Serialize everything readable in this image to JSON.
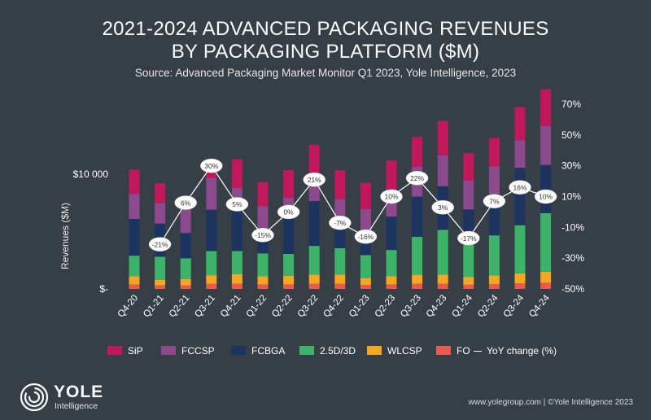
{
  "header": {
    "title_line1": "2021-2024 ADVANCED PACKAGING REVENUES",
    "title_line2": "BY PACKAGING PLATFORM ($M)",
    "subtitle": "Source: Advanced Packaging Market Monitor Q1 2023, Yole Intelligence, 2023"
  },
  "legend": {
    "sip": "SiP",
    "fccsp": "FCCSP",
    "fcbga": "FCBGA",
    "d25": "2.5D/3D",
    "wlcsp": "WLCSP",
    "fo": "FO",
    "yoy": "YoY change (%)"
  },
  "colors": {
    "sip": "#c0185a",
    "fccsp": "#8b4a8c",
    "fcbga": "#1d3461",
    "d25": "#3db36a",
    "wlcsp": "#f5a623",
    "fo": "#e85a4f"
  },
  "logo": {
    "name": "YOLE",
    "sub": "Intelligence"
  },
  "footer": "www.yolegroup.com | ©Yole Intelligence 2023",
  "chart_data": {
    "type": "bar",
    "stacked": true,
    "title": "2021-2024 ADVANCED PACKAGING REVENUES BY PACKAGING PLATFORM ($M)",
    "ylabel": "Revenues ($M)",
    "y_ticks": [
      "$-",
      "$10 000"
    ],
    "ylim": [
      0,
      18000
    ],
    "y2_ticks": [
      "70%",
      "50%",
      "30%",
      "10%",
      "-10%",
      "-30%",
      "-50%"
    ],
    "y2lim": [
      -50,
      70
    ],
    "categories": [
      "Q4-20",
      "Q1-21",
      "Q2-21",
      "Q3-21",
      "Q4-21",
      "Q1-22",
      "Q2-22",
      "Q3-22",
      "Q4-22",
      "Q1-23",
      "Q2-23",
      "Q3-23",
      "Q4-23",
      "Q1-24",
      "Q2-24",
      "Q3-24",
      "Q4-24"
    ],
    "series": [
      {
        "name": "FO",
        "key": "fo",
        "values": [
          400,
          300,
          320,
          450,
          450,
          400,
          400,
          450,
          450,
          350,
          400,
          450,
          450,
          380,
          420,
          500,
          550
        ]
      },
      {
        "name": "WLCSP",
        "key": "wlcsp",
        "values": [
          700,
          500,
          550,
          750,
          850,
          700,
          750,
          800,
          800,
          600,
          700,
          800,
          800,
          650,
          750,
          850,
          950
        ]
      },
      {
        "name": "2.5D/3D",
        "key": "d25",
        "values": [
          1800,
          2000,
          1800,
          2100,
          2000,
          2000,
          1900,
          2500,
          2300,
          2000,
          2300,
          3300,
          3900,
          3100,
          3500,
          4200,
          5100
        ]
      },
      {
        "name": "FCBGA",
        "key": "fcbga",
        "values": [
          3200,
          2900,
          2200,
          3600,
          3600,
          1800,
          3400,
          3900,
          1900,
          1600,
          2900,
          3500,
          3800,
          2800,
          3600,
          5000,
          4200
        ]
      },
      {
        "name": "FCCSP",
        "key": "fccsp",
        "values": [
          2200,
          1800,
          2300,
          2800,
          1900,
          2300,
          1500,
          2300,
          2400,
          2400,
          2400,
          2600,
          2700,
          2500,
          2400,
          2400,
          3400
        ]
      },
      {
        "name": "SiP",
        "key": "sip",
        "values": [
          2100,
          1700,
          700,
          700,
          2500,
          2100,
          2400,
          2600,
          2500,
          2300,
          2500,
          2600,
          3000,
          2400,
          2500,
          2900,
          3200
        ]
      }
    ],
    "yoy": {
      "name": "YoY change (%)",
      "values": [
        null,
        -21,
        6,
        30,
        5,
        -15,
        0,
        21,
        -7,
        -16,
        10,
        22,
        3,
        -17,
        7,
        16,
        10
      ],
      "labels": [
        "",
        "-21%",
        "6%",
        "30%",
        "5%",
        "-15%",
        "0%",
        "21%",
        "-7%",
        "-16%",
        "10%",
        "22%",
        "3%",
        "-17%",
        "7%",
        "16%",
        "10%"
      ]
    }
  }
}
